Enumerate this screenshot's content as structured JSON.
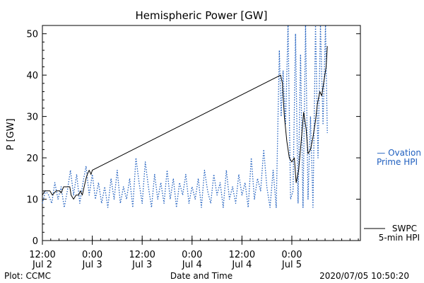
{
  "chart_data": {
    "type": "line",
    "title": "Hemispheric Power [GW]",
    "xlabel": "Date and Time",
    "ylabel": "P [GW]",
    "ylim": [
      0,
      52
    ],
    "yticks": [
      0,
      10,
      20,
      30,
      40,
      50
    ],
    "xlim": [
      0,
      51
    ],
    "x_unit": "hours since 2020-07-02 12:00 UT",
    "xticks": [
      {
        "x": 0,
        "line1": "12:00",
        "line2": "Jul 2"
      },
      {
        "x": 12,
        "line1": "0:00",
        "line2": "Jul 3"
      },
      {
        "x": 24,
        "line1": "12:00",
        "line2": "Jul 3"
      },
      {
        "x": 36,
        "line1": "0:00",
        "line2": "Jul 4"
      },
      {
        "x": 48,
        "line1": "12:00",
        "line2": "Jul 4"
      },
      {
        "x": 60,
        "line1": "0:00",
        "line2": "Jul 5"
      }
    ],
    "xtick_scale": 0.6667,
    "grid": false,
    "series": [
      {
        "name": "SWPC 5-min HPI",
        "label_line1": "SWPC",
        "label_line2": "5-min HPI",
        "color": "#000000",
        "style": "solid",
        "points": [
          [
            0,
            11
          ],
          [
            0.4,
            12
          ],
          [
            1.2,
            12
          ],
          [
            1.6,
            11
          ],
          [
            2.2,
            12
          ],
          [
            2.8,
            12
          ],
          [
            3.0,
            11.5
          ],
          [
            3.4,
            13
          ],
          [
            4.4,
            13
          ],
          [
            4.6,
            11
          ],
          [
            5.0,
            10
          ],
          [
            5.4,
            11
          ],
          [
            5.8,
            11
          ],
          [
            6.1,
            12
          ],
          [
            6.4,
            11
          ],
          [
            6.7,
            13
          ],
          [
            7.0,
            15
          ],
          [
            7.2,
            16
          ],
          [
            7.5,
            17
          ],
          [
            7.8,
            16
          ],
          [
            8.0,
            17
          ],
          [
            38.2,
            40
          ],
          [
            38.5,
            38
          ],
          [
            38.8,
            30
          ],
          [
            39.2,
            24
          ],
          [
            39.6,
            20
          ],
          [
            40.0,
            19
          ],
          [
            40.4,
            20
          ],
          [
            40.7,
            14
          ],
          [
            41.1,
            17
          ],
          [
            41.5,
            24
          ],
          [
            41.9,
            31
          ],
          [
            42.3,
            27
          ],
          [
            42.6,
            21
          ],
          [
            43.0,
            22
          ],
          [
            43.4,
            25
          ],
          [
            43.8,
            29
          ],
          [
            44.1,
            33
          ],
          [
            44.5,
            36
          ],
          [
            44.8,
            35
          ],
          [
            45.1,
            38
          ],
          [
            45.5,
            42
          ],
          [
            45.7,
            47
          ]
        ]
      },
      {
        "name": "Ovation Prime HPI",
        "label_line1": "— Ovation",
        "label_line2": "Prime HPI",
        "color": "#1f5fbf",
        "style": "dotted",
        "points": [
          [
            0,
            9
          ],
          [
            0.5,
            12
          ],
          [
            1.0,
            11
          ],
          [
            1.5,
            9
          ],
          [
            2.0,
            14
          ],
          [
            2.5,
            10
          ],
          [
            3.0,
            13
          ],
          [
            3.5,
            8
          ],
          [
            4.0,
            12
          ],
          [
            4.5,
            17
          ],
          [
            5.0,
            11
          ],
          [
            5.5,
            16
          ],
          [
            6.0,
            9
          ],
          [
            6.5,
            14
          ],
          [
            7.0,
            18
          ],
          [
            7.5,
            11
          ],
          [
            8.0,
            16
          ],
          [
            8.5,
            10
          ],
          [
            9.0,
            14
          ],
          [
            9.5,
            9
          ],
          [
            10.0,
            13
          ],
          [
            10.5,
            8
          ],
          [
            11.0,
            15
          ],
          [
            11.5,
            10
          ],
          [
            12.0,
            17
          ],
          [
            12.5,
            9
          ],
          [
            13.0,
            13
          ],
          [
            13.5,
            10
          ],
          [
            14.0,
            15
          ],
          [
            14.5,
            8
          ],
          [
            15.0,
            20
          ],
          [
            15.5,
            14
          ],
          [
            16.0,
            9
          ],
          [
            16.5,
            19
          ],
          [
            17.0,
            13
          ],
          [
            17.5,
            8
          ],
          [
            18.0,
            16
          ],
          [
            18.5,
            10
          ],
          [
            19.0,
            14
          ],
          [
            19.5,
            9
          ],
          [
            20.0,
            17
          ],
          [
            20.5,
            10
          ],
          [
            21.0,
            15
          ],
          [
            21.5,
            8
          ],
          [
            22.0,
            14
          ],
          [
            22.5,
            11
          ],
          [
            23.0,
            16
          ],
          [
            23.5,
            9
          ],
          [
            24.0,
            13
          ],
          [
            24.5,
            10
          ],
          [
            25.0,
            15
          ],
          [
            25.5,
            8
          ],
          [
            26.0,
            17
          ],
          [
            26.5,
            12
          ],
          [
            27.0,
            9
          ],
          [
            27.5,
            16
          ],
          [
            28.0,
            11
          ],
          [
            28.5,
            14
          ],
          [
            29.0,
            8
          ],
          [
            29.5,
            17
          ],
          [
            30.0,
            10
          ],
          [
            30.5,
            13
          ],
          [
            31.0,
            9
          ],
          [
            31.5,
            16
          ],
          [
            32.0,
            11
          ],
          [
            32.5,
            14
          ],
          [
            33.0,
            8
          ],
          [
            33.5,
            20
          ],
          [
            34.0,
            10
          ],
          [
            34.5,
            15
          ],
          [
            35.0,
            12
          ],
          [
            35.5,
            22
          ],
          [
            36.0,
            13
          ],
          [
            36.5,
            8
          ],
          [
            37.0,
            17
          ],
          [
            37.5,
            8
          ],
          [
            38.0,
            46
          ],
          [
            38.3,
            30
          ],
          [
            38.6,
            41
          ],
          [
            39.0,
            28
          ],
          [
            39.4,
            52
          ],
          [
            39.8,
            10
          ],
          [
            40.2,
            12
          ],
          [
            40.6,
            50
          ],
          [
            41.0,
            9
          ],
          [
            41.4,
            45
          ],
          [
            41.8,
            8
          ],
          [
            42.2,
            52
          ],
          [
            42.6,
            10
          ],
          [
            43.0,
            30
          ],
          [
            43.4,
            8
          ],
          [
            43.8,
            52
          ],
          [
            44.2,
            20
          ],
          [
            44.6,
            52
          ],
          [
            45.0,
            28
          ],
          [
            45.4,
            52
          ],
          [
            45.7,
            26
          ]
        ]
      }
    ],
    "footer_left": "Plot: CCMC",
    "footer_right": "2020/07/05 10:50:20"
  }
}
